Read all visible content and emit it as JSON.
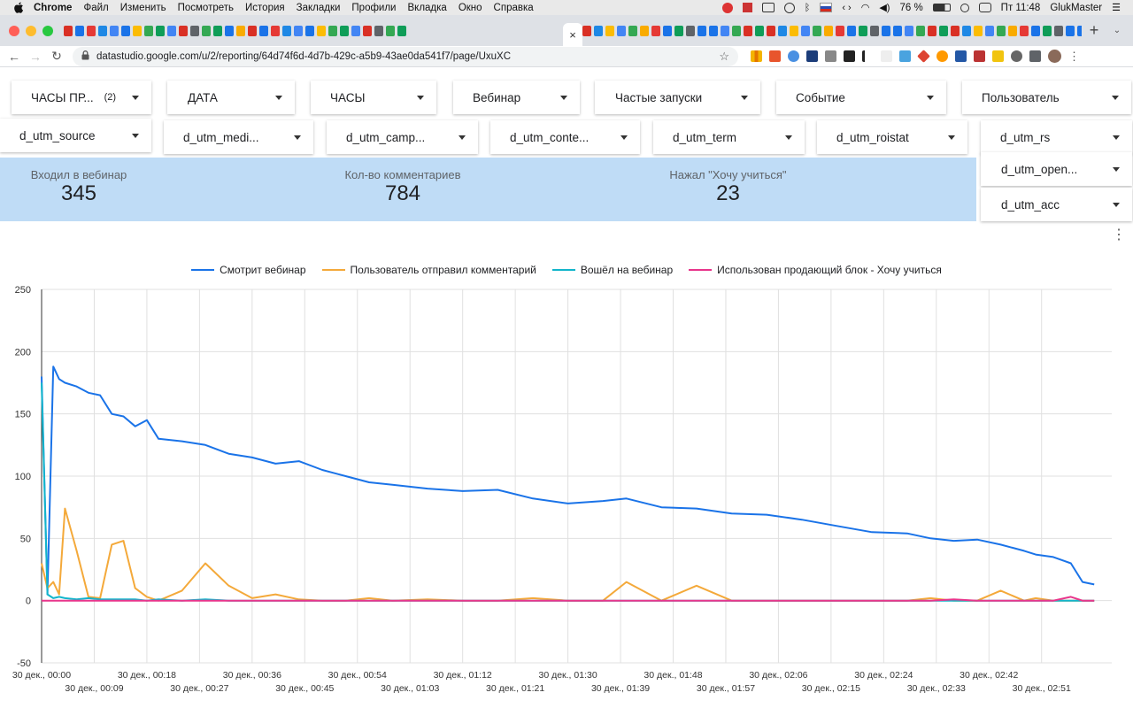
{
  "menubar": {
    "items": [
      "Chrome",
      "Файл",
      "Изменить",
      "Посмотреть",
      "История",
      "Закладки",
      "Профили",
      "Вкладка",
      "Окно",
      "Справка"
    ],
    "battery": "76 %",
    "clock": "Пт 11:48",
    "user": "GlukMaster"
  },
  "browser": {
    "url": "datastudio.google.com/u/2/reporting/64d74f6d-4d7b-429c-a5b9-43ae0da541f7/page/UxuXC",
    "active_tab_close": "×",
    "new_tab": "+"
  },
  "filters_row1": [
    {
      "label": "ЧАСЫ ПР...",
      "count": "(2)"
    },
    {
      "label": "ДАТА"
    },
    {
      "label": "ЧАСЫ"
    },
    {
      "label": "Вебинар"
    },
    {
      "label": "Частые запуски"
    },
    {
      "label": "Событие"
    },
    {
      "label": "Пользователь"
    }
  ],
  "filters_row2": [
    {
      "label": "d_utm_source"
    },
    {
      "label": "d_utm_medi..."
    },
    {
      "label": "d_utm_camp..."
    },
    {
      "label": "d_utm_conte..."
    },
    {
      "label": "d_utm_term"
    },
    {
      "label": "d_utm_roistat"
    },
    {
      "label": "d_utm_rs"
    },
    {
      "label": "d_utm_open..."
    },
    {
      "label": "d_utm_acc"
    }
  ],
  "kpis": [
    {
      "title": "Входил в вебинар",
      "value": "345"
    },
    {
      "title": "Кол-во комментариев",
      "value": "784"
    },
    {
      "title": "Нажал \"Хочу учиться\"",
      "value": "23"
    }
  ],
  "more_menu": "⋮",
  "chart_data": {
    "type": "line",
    "xlabel": "",
    "ylabel": "",
    "ylim": [
      -50,
      250
    ],
    "yticks": [
      -50,
      0,
      50,
      100,
      150,
      200,
      250
    ],
    "grid": true,
    "legend": "top",
    "x_ticks_top": [
      "30 дек., 00:00",
      "30 дек., 00:18",
      "30 дек., 00:36",
      "30 дек., 00:54",
      "30 дек., 01:12",
      "30 дек., 01:30",
      "30 дек., 01:48",
      "30 дек., 02:06",
      "30 дек., 02:24",
      "30 дек., 02:42"
    ],
    "x_ticks_bottom": [
      "30 дек., 00:09",
      "30 дек., 00:27",
      "30 дек., 00:45",
      "30 дек., 01:03",
      "30 дек., 01:21",
      "30 дек., 01:39",
      "30 дек., 01:57",
      "30 дек., 02:15",
      "30 дек., 02:33",
      "30 дек., 02:51"
    ],
    "x_minutes": [
      0,
      1,
      2,
      3,
      4,
      6,
      8,
      10,
      12,
      14,
      16,
      18,
      20,
      24,
      28,
      32,
      36,
      40,
      44,
      48,
      52,
      56,
      60,
      66,
      72,
      78,
      84,
      90,
      96,
      100,
      106,
      112,
      118,
      124,
      130,
      136,
      142,
      148,
      152,
      156,
      160,
      164,
      168,
      170,
      173,
      176,
      178,
      180
    ],
    "series": [
      {
        "name": "Смотрит вебинар",
        "color": "#1a73e8",
        "values": [
          180,
          5,
          188,
          178,
          175,
          172,
          167,
          165,
          150,
          148,
          140,
          145,
          130,
          128,
          125,
          118,
          115,
          110,
          112,
          105,
          100,
          95,
          93,
          90,
          88,
          89,
          82,
          78,
          80,
          82,
          75,
          74,
          70,
          69,
          65,
          60,
          55,
          54,
          50,
          48,
          49,
          45,
          40,
          37,
          35,
          30,
          15,
          13
        ]
      },
      {
        "name": "Пользователь отправил комментарий",
        "color": "#f4a93a",
        "values": [
          30,
          10,
          15,
          5,
          74,
          40,
          3,
          2,
          45,
          48,
          10,
          3,
          0,
          8,
          30,
          12,
          2,
          5,
          1,
          0,
          0,
          2,
          0,
          1,
          0,
          0,
          2,
          0,
          0,
          15,
          0,
          12,
          0,
          0,
          0,
          0,
          0,
          0,
          2,
          0,
          0,
          8,
          0,
          2,
          0,
          0,
          0,
          0
        ]
      },
      {
        "name": "Вошёл на вебинар",
        "color": "#12b5cb",
        "values": [
          175,
          5,
          2,
          3,
          2,
          1,
          2,
          1,
          1,
          1,
          1,
          0,
          1,
          0,
          1,
          0,
          0,
          0,
          0,
          0,
          0,
          0,
          0,
          0,
          0,
          0,
          0,
          0,
          0,
          0,
          0,
          0,
          0,
          0,
          0,
          0,
          0,
          0,
          0,
          0,
          0,
          0,
          0,
          0,
          0,
          0,
          0,
          0
        ]
      },
      {
        "name": "Использован продающий блок - Хочу учиться",
        "color": "#e8358b",
        "values": [
          0,
          0,
          0,
          0,
          0,
          0,
          0,
          0,
          0,
          0,
          0,
          0,
          0,
          0,
          0,
          0,
          0,
          0,
          0,
          0,
          0,
          0,
          0,
          0,
          0,
          0,
          0,
          0,
          0,
          0,
          0,
          0,
          0,
          0,
          0,
          0,
          0,
          0,
          0,
          1,
          0,
          0,
          0,
          0,
          0,
          3,
          0,
          0
        ]
      }
    ]
  }
}
